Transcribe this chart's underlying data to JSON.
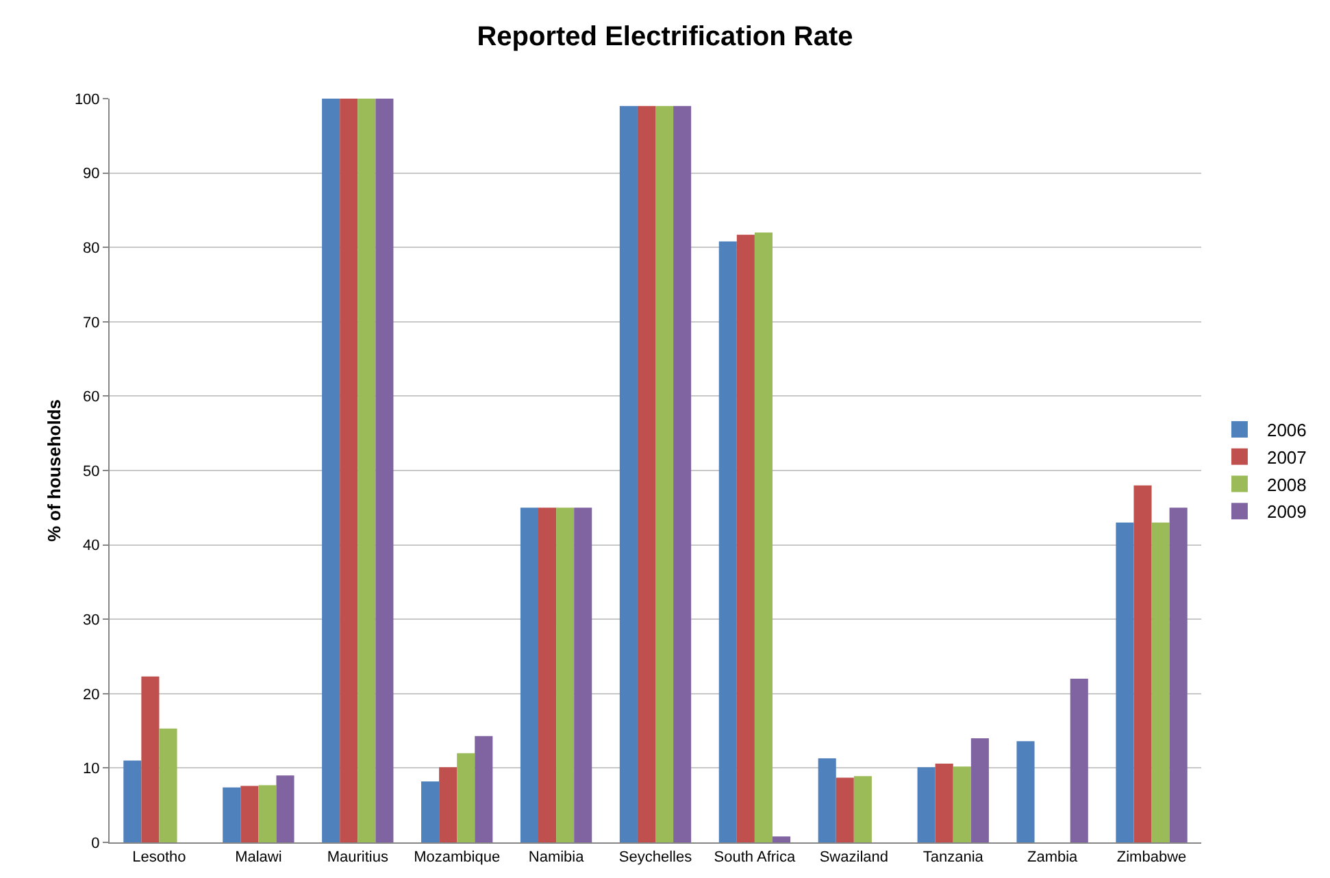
{
  "chart_data": {
    "type": "bar",
    "title": "Reported Electrification Rate",
    "ylabel": "% of households",
    "categories": [
      "Lesotho",
      "Malawi",
      "Mauritius",
      "Mozambique",
      "Namibia",
      "Seychelles",
      "South Africa",
      "Swaziland",
      "Tanzania",
      "Zambia",
      "Zimbabwe"
    ],
    "series": [
      {
        "name": "2006",
        "color": "#4f81bd",
        "values": [
          11,
          7.4,
          100,
          8.2,
          45,
          99,
          80.8,
          11.3,
          10.1,
          13.6,
          43
        ]
      },
      {
        "name": "2007",
        "color": "#c0504d",
        "values": [
          22.3,
          7.6,
          100,
          10.1,
          45,
          99,
          81.7,
          8.7,
          10.6,
          null,
          48
        ]
      },
      {
        "name": "2008",
        "color": "#9bbb59",
        "values": [
          15.3,
          7.7,
          100,
          12,
          45,
          99,
          82,
          8.9,
          10.2,
          null,
          43
        ]
      },
      {
        "name": "2009",
        "color": "#8064a2",
        "values": [
          null,
          9,
          100,
          14.3,
          45,
          99,
          0.8,
          null,
          14,
          22,
          45
        ]
      }
    ],
    "ylim": [
      0,
      100
    ],
    "yticks": [
      0,
      10,
      20,
      30,
      40,
      50,
      60,
      70,
      80,
      90,
      100
    ],
    "grid": "y",
    "legend": "right"
  }
}
